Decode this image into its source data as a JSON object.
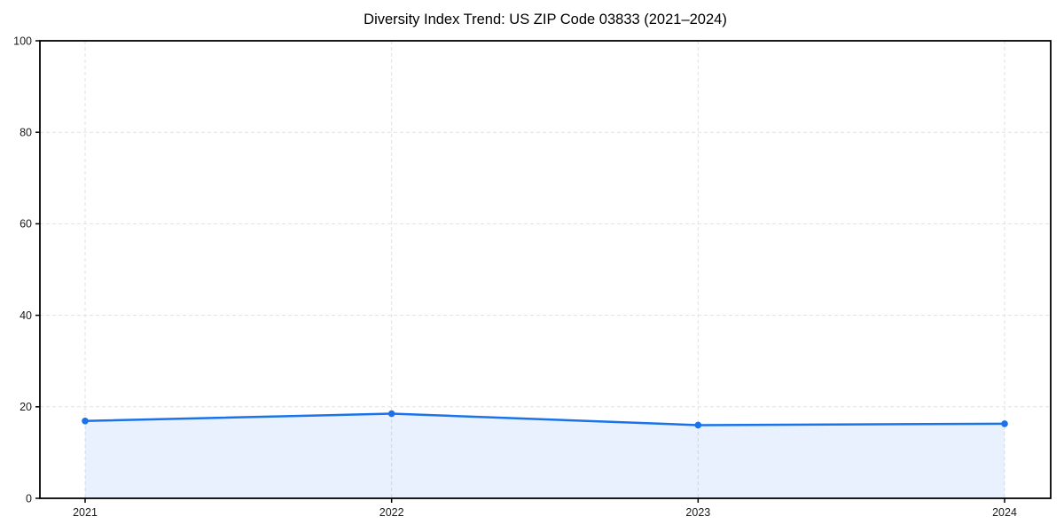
{
  "chart_data": {
    "type": "line",
    "title": "Diversity Index Trend: US ZIP Code 03833 (2021–2024)",
    "categories": [
      "2021",
      "2022",
      "2023",
      "2024"
    ],
    "series": [
      {
        "name": "Diversity Index",
        "values": [
          16.9,
          18.5,
          16.0,
          16.3
        ]
      }
    ],
    "xlabel": "",
    "ylabel": "",
    "ylim": [
      0,
      100
    ],
    "yticks": [
      0,
      20,
      40,
      60,
      80,
      100
    ],
    "grid": true,
    "grid_style": "dashed",
    "legend": false,
    "area_fill": true,
    "marker": "circle",
    "line_color": "#1a73e8",
    "fill_color": "rgba(26,115,232,0.10)",
    "grid_color": "#e1e1e1",
    "axis_color": "#000000",
    "text_color": "#1a1a1a"
  }
}
